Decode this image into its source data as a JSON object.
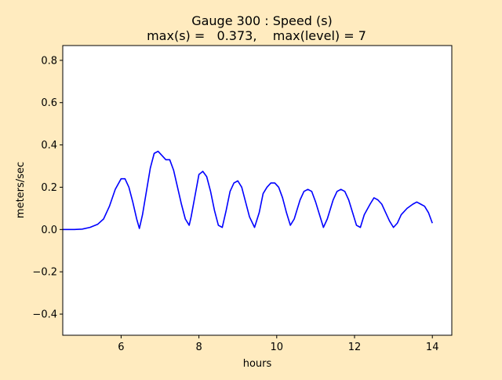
{
  "figure": {
    "title_line1": "Gauge 300 : Speed (s)",
    "title_line2": "max(s) =   0.373,    max(level) = 7",
    "background_color": "#ffebbf",
    "plot_background_color": "#ffffff"
  },
  "chart_data": {
    "type": "line",
    "title": "Gauge 300 : Speed (s)\nmax(s) =   0.373,    max(level) = 7",
    "xlabel": "hours",
    "ylabel": "meters/sec",
    "xlim": [
      4.5,
      14.5
    ],
    "ylim": [
      -0.5,
      0.87
    ],
    "xticks": [
      6,
      8,
      10,
      12,
      14
    ],
    "yticks": [
      -0.4,
      -0.2,
      0.0,
      0.2,
      0.4,
      0.6,
      0.8
    ],
    "xtick_labels": [
      "6",
      "8",
      "10",
      "12",
      "14"
    ],
    "ytick_labels": [
      "−0.4",
      "−0.2",
      "0.0",
      "0.2",
      "0.4",
      "0.6",
      "0.8"
    ],
    "grid": false,
    "legend": "none",
    "series": [
      {
        "color": "#0000ff",
        "x": [
          4.5,
          4.8,
          5.0,
          5.2,
          5.4,
          5.55,
          5.7,
          5.85,
          6.0,
          6.1,
          6.2,
          6.3,
          6.4,
          6.47,
          6.55,
          6.65,
          6.75,
          6.85,
          6.95,
          7.05,
          7.15,
          7.25,
          7.35,
          7.45,
          7.55,
          7.65,
          7.75,
          7.8,
          7.9,
          8.0,
          8.1,
          8.2,
          8.3,
          8.4,
          8.5,
          8.6,
          8.7,
          8.8,
          8.9,
          9.0,
          9.1,
          9.2,
          9.3,
          9.43,
          9.55,
          9.65,
          9.75,
          9.85,
          9.95,
          10.05,
          10.15,
          10.25,
          10.35,
          10.45,
          10.6,
          10.7,
          10.8,
          10.9,
          11.0,
          11.1,
          11.2,
          11.3,
          11.45,
          11.55,
          11.65,
          11.75,
          11.85,
          11.95,
          12.05,
          12.15,
          12.25,
          12.4,
          12.5,
          12.6,
          12.7,
          12.8,
          12.9,
          13.0,
          13.1,
          13.2,
          13.35,
          13.5,
          13.6,
          13.7,
          13.8,
          13.9,
          14.0
        ],
        "y": [
          0.0,
          0.0,
          0.002,
          0.01,
          0.025,
          0.05,
          0.11,
          0.19,
          0.24,
          0.24,
          0.2,
          0.13,
          0.05,
          0.005,
          0.07,
          0.18,
          0.29,
          0.36,
          0.37,
          0.35,
          0.33,
          0.33,
          0.28,
          0.2,
          0.12,
          0.05,
          0.02,
          0.06,
          0.16,
          0.26,
          0.275,
          0.25,
          0.18,
          0.09,
          0.02,
          0.01,
          0.09,
          0.18,
          0.22,
          0.23,
          0.2,
          0.13,
          0.06,
          0.01,
          0.08,
          0.17,
          0.2,
          0.22,
          0.22,
          0.2,
          0.15,
          0.08,
          0.02,
          0.05,
          0.14,
          0.18,
          0.19,
          0.18,
          0.13,
          0.07,
          0.01,
          0.05,
          0.14,
          0.18,
          0.19,
          0.18,
          0.14,
          0.08,
          0.02,
          0.01,
          0.07,
          0.12,
          0.15,
          0.14,
          0.12,
          0.08,
          0.04,
          0.01,
          0.03,
          0.07,
          0.1,
          0.12,
          0.13,
          0.12,
          0.11,
          0.08,
          0.03
        ]
      }
    ]
  }
}
